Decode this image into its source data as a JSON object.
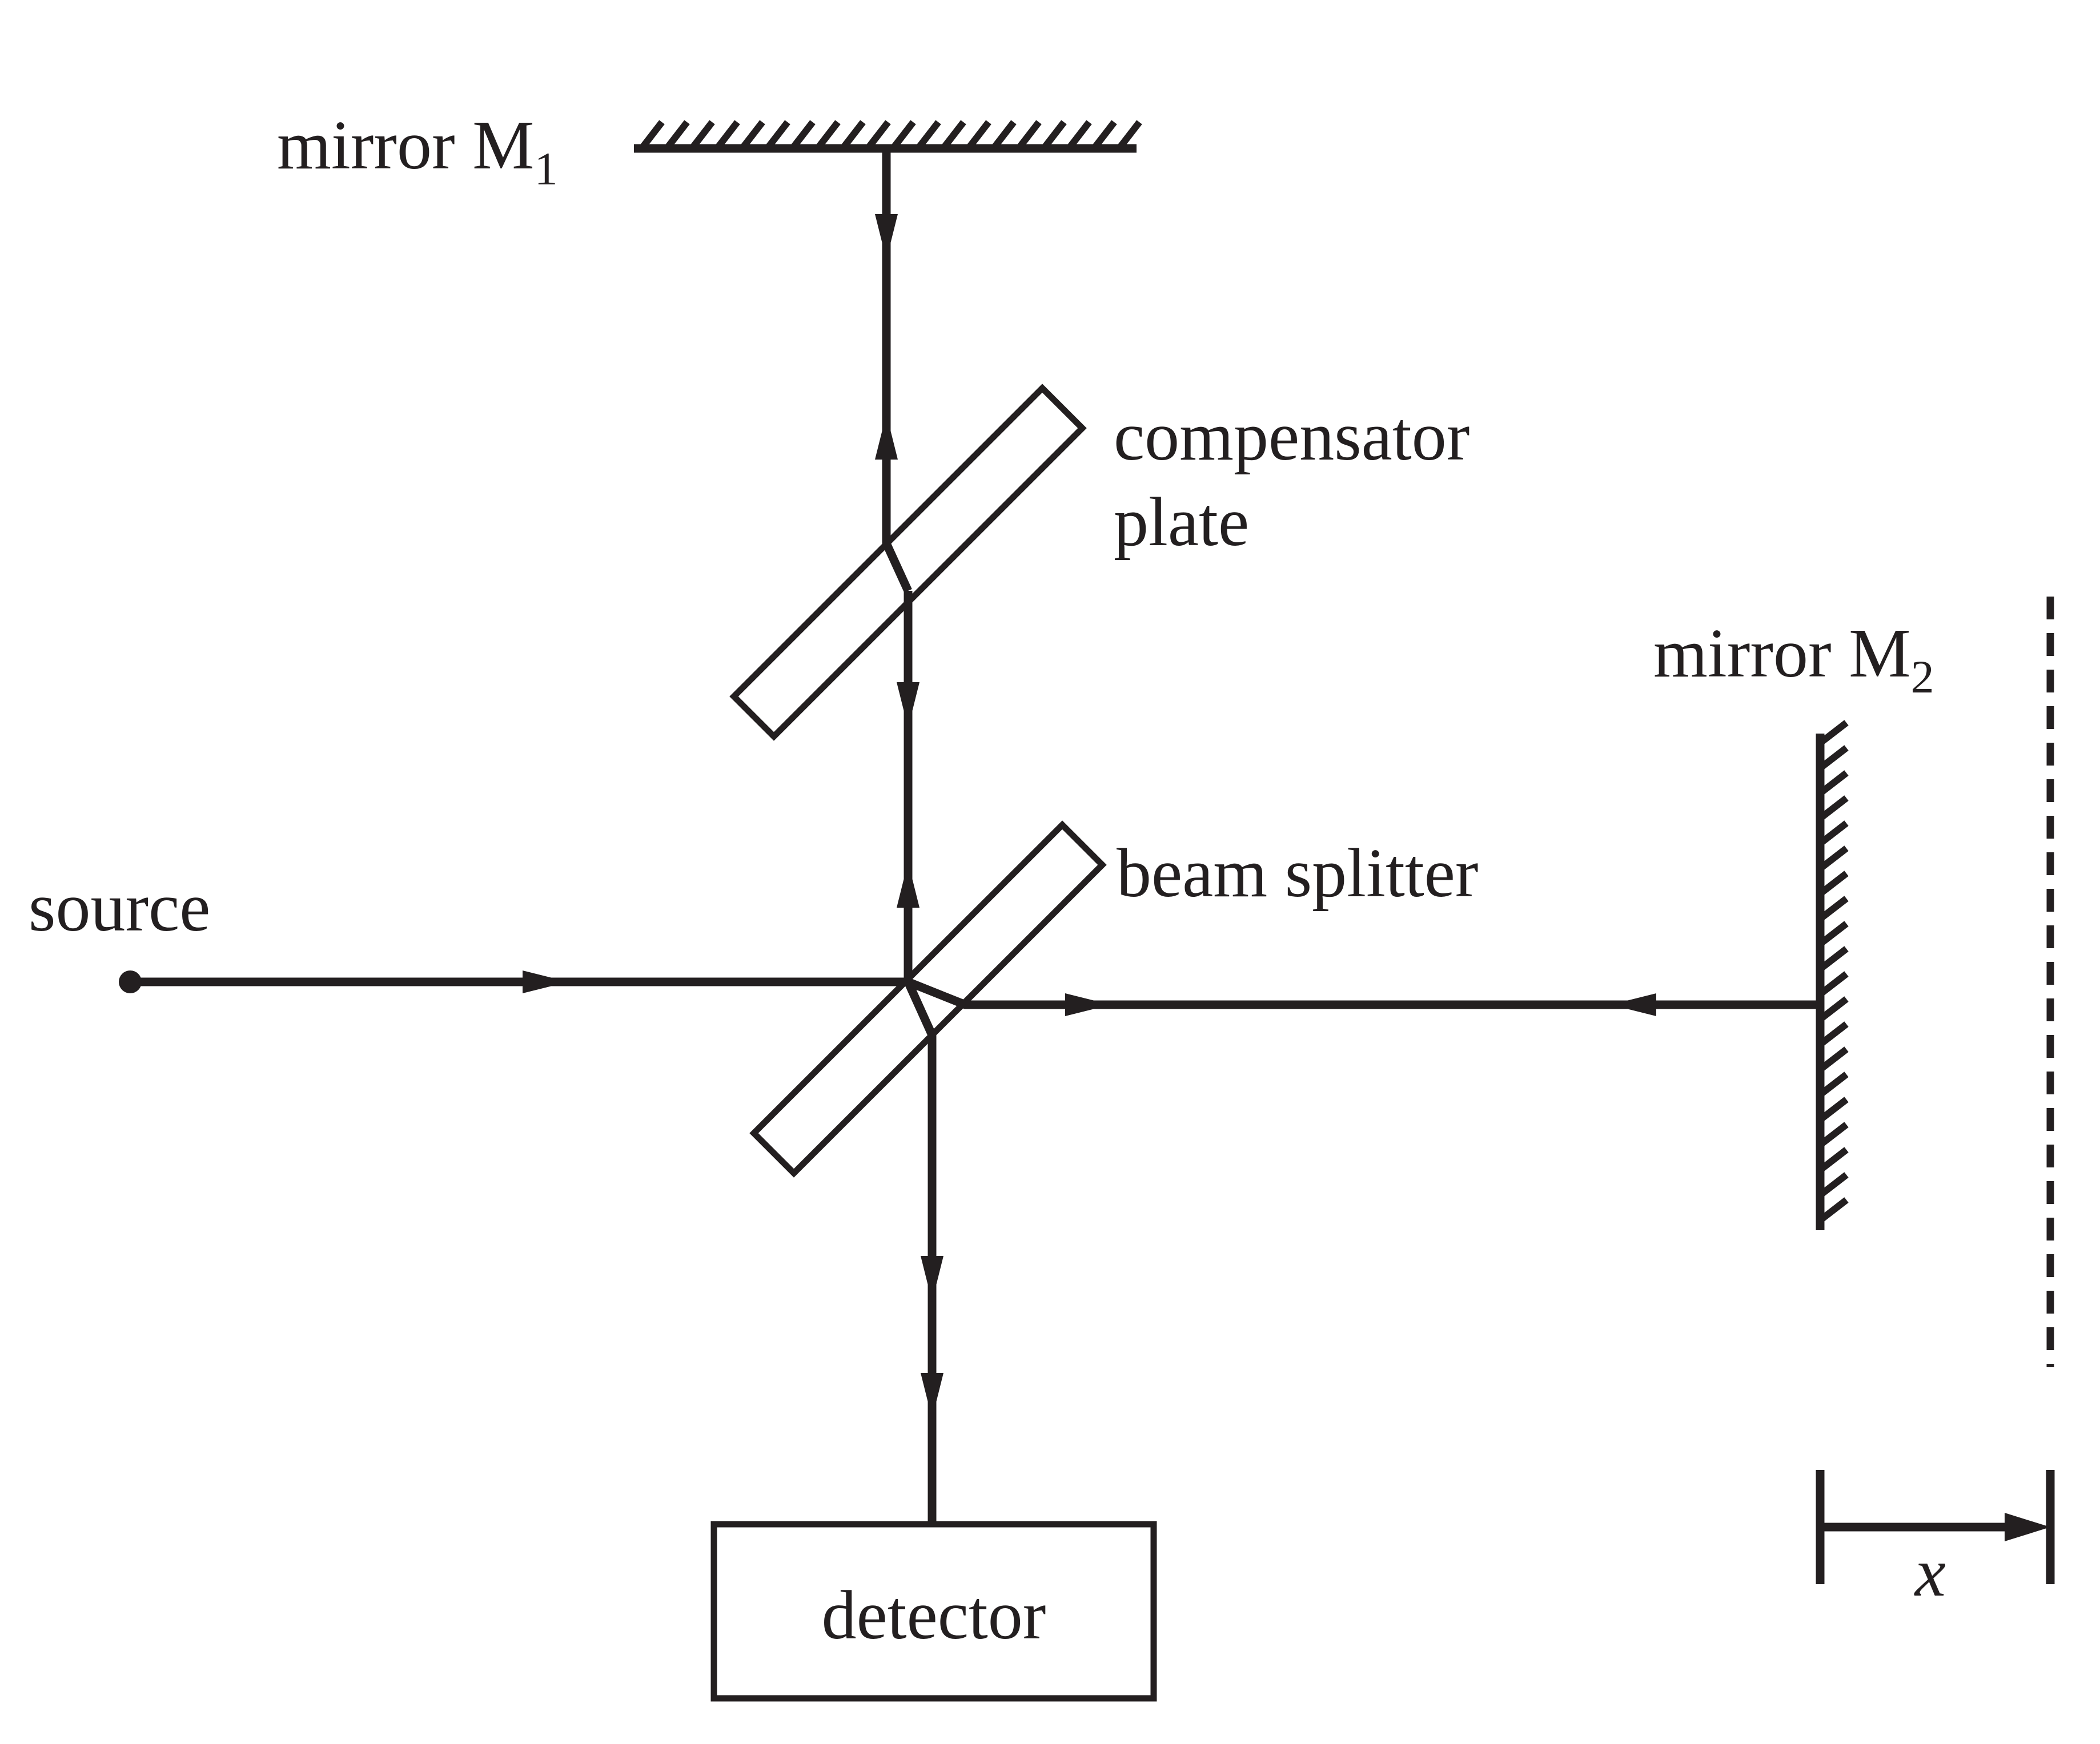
{
  "labels": {
    "mirror_m1": "mirror M",
    "mirror_m1_sub": "1",
    "mirror_m2": "mirror M",
    "mirror_m2_sub": "2",
    "compensator_line1": "compensator",
    "compensator_line2": "plate",
    "beam_splitter": "beam splitter",
    "source": "source",
    "detector": "detector",
    "displacement": "x"
  },
  "colors": {
    "ink": "#231f20",
    "background": "#ffffff"
  }
}
